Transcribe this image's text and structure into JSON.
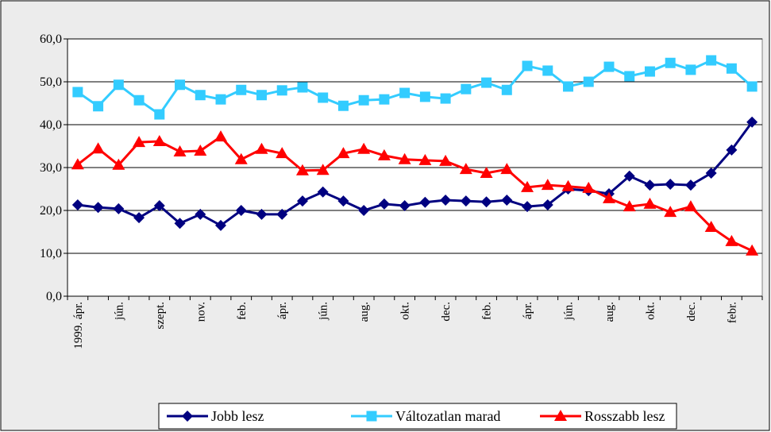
{
  "chart_data": {
    "type": "line",
    "categories": [
      "1999. ápr.",
      null,
      "jún.",
      null,
      "szept.",
      null,
      "nov.",
      null,
      "feb.",
      null,
      "ápr.",
      null,
      "jún.",
      null,
      "aug.",
      null,
      "okt.",
      null,
      "dec.",
      null,
      "feb.",
      null,
      "ápr.",
      null,
      "jún.",
      null,
      "aug.",
      null,
      "okt.",
      null,
      "dec.",
      null,
      "febr.",
      null
    ],
    "series": [
      {
        "name": "Jobb lesz",
        "color": "#000080",
        "marker": "diamond",
        "values": [
          21.3,
          20.7,
          20.4,
          18.3,
          21.1,
          17.0,
          19.1,
          16.5,
          20.0,
          19.1,
          19.1,
          22.2,
          24.3,
          22.2,
          20.0,
          21.5,
          21.1,
          21.9,
          22.4,
          22.2,
          22.0,
          22.4,
          20.9,
          21.3,
          25.0,
          24.6,
          23.9,
          28.0,
          25.9,
          26.1,
          25.9,
          28.7,
          34.1,
          40.6
        ]
      },
      {
        "name": "Változatlan marad",
        "color": "#33ccff",
        "marker": "square",
        "values": [
          47.6,
          44.3,
          49.3,
          45.7,
          42.4,
          49.3,
          46.9,
          45.9,
          48.1,
          46.9,
          48.0,
          48.7,
          46.3,
          44.4,
          45.7,
          45.9,
          47.4,
          46.5,
          46.1,
          48.3,
          49.8,
          48.1,
          53.7,
          52.6,
          48.9,
          50.0,
          53.5,
          51.3,
          52.4,
          54.4,
          52.8,
          55.0,
          53.1,
          48.9
        ]
      },
      {
        "name": "Rosszabb lesz",
        "color": "#ff0000",
        "marker": "triangle",
        "values": [
          30.7,
          34.4,
          30.6,
          35.9,
          36.1,
          33.7,
          33.9,
          37.2,
          31.9,
          34.3,
          33.3,
          29.3,
          29.4,
          33.3,
          34.3,
          32.8,
          31.9,
          31.7,
          31.5,
          29.6,
          28.7,
          29.6,
          25.4,
          25.9,
          25.6,
          25.2,
          22.8,
          20.9,
          21.5,
          19.6,
          20.9,
          16.1,
          12.8,
          10.6
        ]
      }
    ],
    "ylim": [
      0,
      60
    ],
    "yticks": [
      {
        "value": 0,
        "label": "0,0"
      },
      {
        "value": 10,
        "label": "10,0"
      },
      {
        "value": 20,
        "label": "20,0"
      },
      {
        "value": 30,
        "label": "30,0"
      },
      {
        "value": 40,
        "label": "40,0"
      },
      {
        "value": 50,
        "label": "50,0"
      },
      {
        "value": 60,
        "label": "60,0"
      }
    ],
    "grid": true,
    "legend": "bottom"
  }
}
